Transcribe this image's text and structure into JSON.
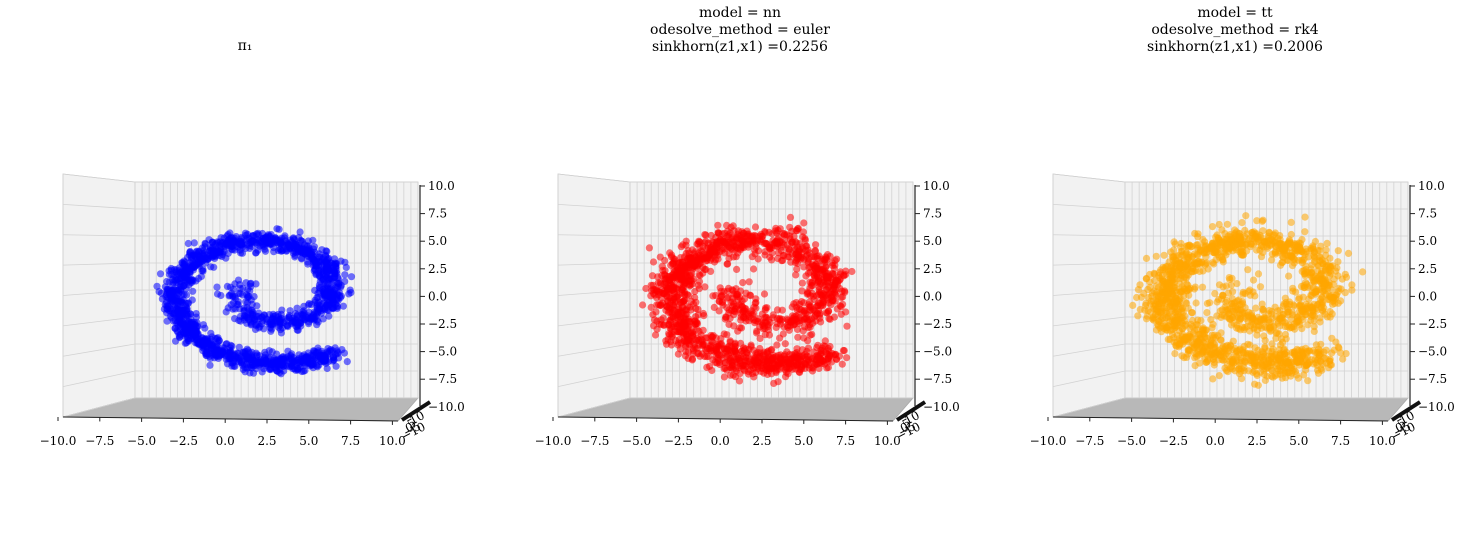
{
  "chart_data": [
    {
      "type": "scatter",
      "title_lines": [
        "π₁"
      ],
      "point_color": "#0000ff",
      "series": [
        {
          "name": "",
          "shape": "spiral",
          "points": 1600,
          "jitter": 0.45
        }
      ],
      "xlim": [
        -10,
        10
      ],
      "ylim": [
        -10,
        10
      ],
      "zlim": [
        -10,
        10
      ],
      "x_tick_labels": [
        "−10.0",
        "−7.5",
        "−5.0",
        "−2.5",
        "0.0",
        "2.5",
        "5.0",
        "7.5",
        "10.0"
      ],
      "z_tick_labels": [
        "10.0",
        "7.5",
        "5.0",
        "2.5",
        "0.0",
        "−2.5",
        "−5.0",
        "−7.5",
        "−10.0"
      ],
      "grid": true
    },
    {
      "type": "scatter",
      "title_lines": [
        "model = nn",
        "odesolve_method = euler",
        "sinkhorn(z1,x1) =0.2256"
      ],
      "point_color": "#ff0000",
      "series": [
        {
          "name": "",
          "shape": "spiral",
          "points": 1600,
          "jitter": 0.7
        }
      ],
      "xlim": [
        -10,
        10
      ],
      "ylim": [
        -10,
        10
      ],
      "zlim": [
        -10,
        10
      ],
      "x_tick_labels": [
        "−10.0",
        "−7.5",
        "−5.0",
        "−2.5",
        "0.0",
        "2.5",
        "5.0",
        "7.5",
        "10.0"
      ],
      "z_tick_labels": [
        "10.0",
        "7.5",
        "5.0",
        "2.5",
        "0.0",
        "−2.5",
        "−5.0",
        "−7.5",
        "−10.0"
      ],
      "grid": true
    },
    {
      "type": "scatter",
      "title_lines": [
        "model = tt",
        "odesolve_method = rk4",
        "sinkhorn(z1,x1) =0.2006"
      ],
      "point_color": "#ffa500",
      "series": [
        {
          "name": "",
          "shape": "spiral",
          "points": 1600,
          "jitter": 0.75
        }
      ],
      "xlim": [
        -10,
        10
      ],
      "ylim": [
        -10,
        10
      ],
      "zlim": [
        -10,
        10
      ],
      "x_tick_labels": [
        "−10.0",
        "−7.5",
        "−5.0",
        "−2.5",
        "0.0",
        "2.5",
        "5.0",
        "7.5",
        "10.0"
      ],
      "z_tick_labels": [
        "10.0",
        "7.5",
        "5.0",
        "2.5",
        "0.0",
        "−2.5",
        "−5.0",
        "−7.5",
        "−10.0"
      ],
      "grid": true
    }
  ]
}
